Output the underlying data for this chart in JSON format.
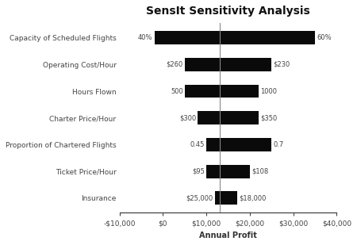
{
  "title": "SensIt Sensitivity Analysis",
  "xlabel": "Annual Profit",
  "variables": [
    "Capacity of Scheduled Flights",
    "Operating Cost/Hour",
    "Hours Flown",
    "Charter Price/Hour",
    "Proportion of Chartered Flights",
    "Ticket Price/Hour",
    "Insurance"
  ],
  "low_values": [
    -2000,
    5000,
    5000,
    8000,
    10000,
    10000,
    12000
  ],
  "high_values": [
    35000,
    25000,
    22000,
    22000,
    25000,
    20000,
    17000
  ],
  "low_labels": [
    "40%",
    "$260",
    "500",
    "$300",
    "0.45",
    "$95",
    "$25,000"
  ],
  "high_labels": [
    "60%",
    "$230",
    "1000",
    "$350",
    "0.7",
    "$108",
    "$18,000"
  ],
  "baseline": 13000,
  "xlim": [
    -10000,
    40000
  ],
  "xticks": [
    -10000,
    0,
    10000,
    20000,
    30000,
    40000
  ],
  "xtick_labels": [
    "-$10,000",
    "$0",
    "$10,000",
    "$20,000",
    "$30,000",
    "$40,000"
  ],
  "bar_color": "#0a0a0a",
  "background_color": "#ffffff",
  "bar_height": 0.5,
  "title_fontsize": 10,
  "label_fontsize": 6.5,
  "axis_fontsize": 6.5,
  "bar_label_fontsize": 6
}
